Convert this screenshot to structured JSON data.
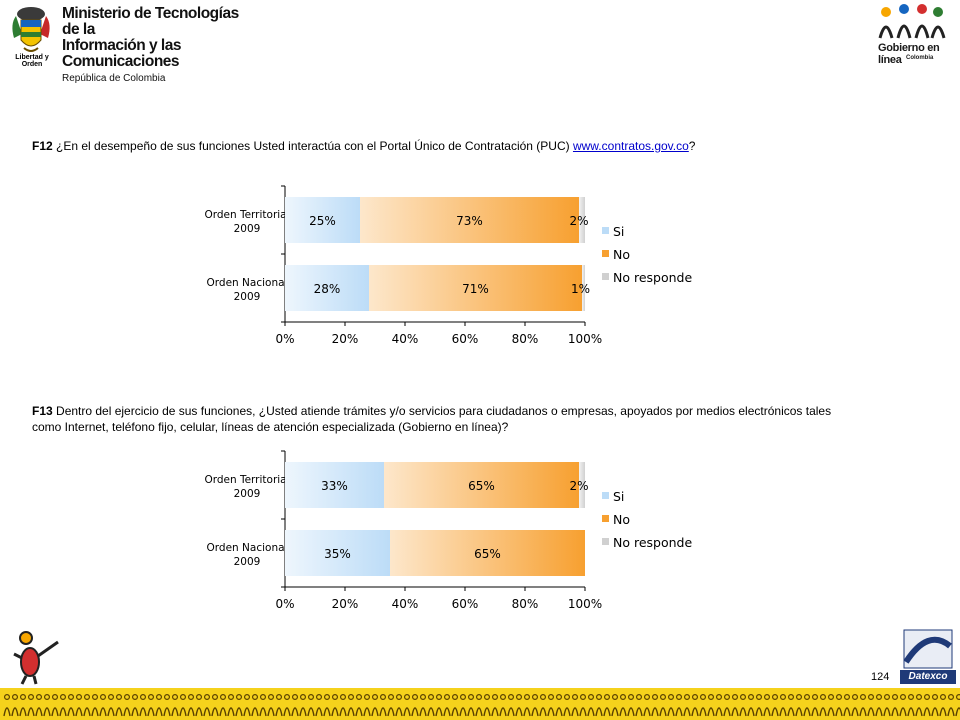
{
  "header": {
    "motto": "Libertad y Orden",
    "ministry_line1": "Ministerio de Tecnologías de la",
    "ministry_line2": "Información y las Comunicaciones",
    "ministry_line3": "República de Colombia",
    "program_name": "Gobierno en línea",
    "program_country": "Colombia"
  },
  "questions": [
    {
      "code": "F12",
      "text_before_link": " ¿En el desempeño de sus funciones Usted interactúa con el Portal Único de Contratación (PUC)  ",
      "link": "www.contratos.gov.co",
      "text_after_link": "?"
    },
    {
      "code": "F13",
      "text": " Dentro del ejercicio de sus funciones, ¿Usted atiende trámites y/o servicios para ciudadanos o empresas, apoyados por medios electrónicos tales como Internet, teléfono fijo, celular, líneas de atención especializada (Gobierno en línea)?"
    }
  ],
  "chart_data": [
    {
      "type": "bar",
      "orientation": "horizontal-stacked-100",
      "categories": [
        "Orden Territorial 2009",
        "Orden Nacional 2009"
      ],
      "series": [
        {
          "name": "Si",
          "values": [
            25,
            28
          ],
          "labels": [
            "25%",
            "28%"
          ],
          "color": "#bcdcf7"
        },
        {
          "name": "No",
          "values": [
            73,
            71
          ],
          "labels": [
            "73%",
            "71%"
          ],
          "color": "#f7a030"
        },
        {
          "name": "No responde",
          "values": [
            2,
            1
          ],
          "labels": [
            "2%",
            "1%"
          ],
          "color": "#d0d0d0"
        }
      ],
      "xticks": [
        "0%",
        "20%",
        "40%",
        "60%",
        "80%",
        "100%"
      ],
      "xlim": [
        0,
        100
      ],
      "legend": "right"
    },
    {
      "type": "bar",
      "orientation": "horizontal-stacked-100",
      "categories": [
        "Orden Territorial 2009",
        "Orden Nacional 2009"
      ],
      "series": [
        {
          "name": "Si",
          "values": [
            33,
            35
          ],
          "labels": [
            "33%",
            "35%"
          ],
          "color": "#bcdcf7"
        },
        {
          "name": "No",
          "values": [
            65,
            65
          ],
          "labels": [
            "65%",
            "65%"
          ],
          "color": "#f7a030"
        },
        {
          "name": "No responde",
          "values": [
            2,
            0
          ],
          "labels": [
            "2%",
            ""
          ],
          "color": "#d0d0d0"
        }
      ],
      "xticks": [
        "0%",
        "20%",
        "40%",
        "60%",
        "80%",
        "100%"
      ],
      "xlim": [
        0,
        100
      ],
      "legend": "right"
    }
  ],
  "footer": {
    "page_number": "124",
    "brand": "Datexco"
  },
  "colors": {
    "strip": "#f5d21c",
    "brand_blue": "#1f3a78",
    "link": "#0000cc"
  }
}
